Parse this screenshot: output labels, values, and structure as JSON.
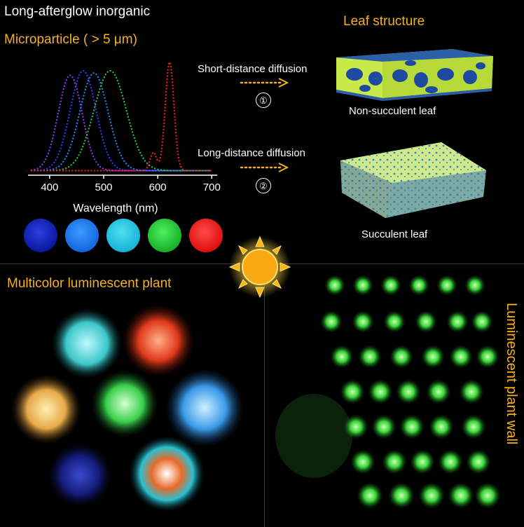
{
  "top_left": {
    "title_line1": "Long-afterglow inorganic",
    "title_line2": "Microparticle ( > 5 μm)"
  },
  "top_right": {
    "title": "Leaf structure",
    "arrow1_label": "Short-distance diffusion",
    "arrow1_number": "①",
    "leaf1_caption": "Non-succulent leaf",
    "arrow2_label": "Long-distance diffusion",
    "arrow2_number": "②",
    "leaf2_caption": "Succulent leaf"
  },
  "bottom_left": {
    "title": "Multicolor luminescent plant"
  },
  "bottom_right": {
    "vertical_title": "Luminescent plant wall"
  },
  "colors": {
    "gold": "#f5b11f",
    "purple": "#9b3cff",
    "indigo": "#3b3cff",
    "blue": "#1f8fff",
    "cyan": "#16c2d8",
    "green": "#22d64a",
    "red": "#ff2020"
  },
  "icons": {
    "sun": "sun-icon",
    "arrow": "dotted-arrow-icon"
  },
  "chart_data": {
    "type": "line",
    "xlabel": "Wavelength (nm)",
    "xticks": [
      400,
      500,
      600,
      700
    ],
    "xlim": [
      360,
      710
    ],
    "ylim": [
      0,
      1
    ],
    "series": [
      {
        "color": "#9b3cff",
        "peak": 438,
        "width": 22,
        "peak_value": 0.84
      },
      {
        "color": "#3b3cff",
        "peak": 462,
        "width": 24,
        "peak_value": 0.88
      },
      {
        "color": "#1f8fff",
        "peak": 482,
        "width": 26,
        "peak_value": 0.86
      },
      {
        "color": "#22d64a",
        "peak": 512,
        "width": 30,
        "peak_value": 0.88
      },
      {
        "color": "#ff2020",
        "peak": 622,
        "width": 8,
        "peak_value": 0.96,
        "secondary_peak": 592,
        "secondary_value": 0.16
      }
    ]
  }
}
